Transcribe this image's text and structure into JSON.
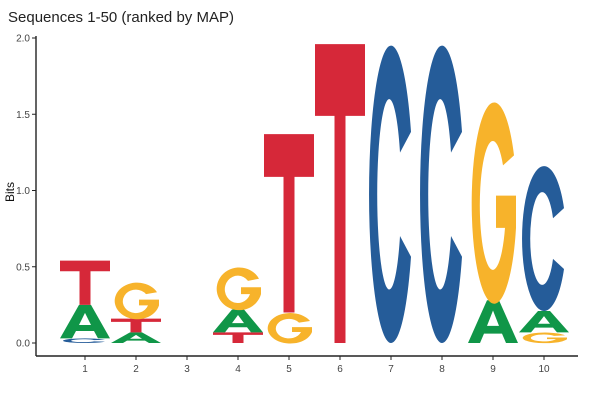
{
  "chart_data": {
    "type": "sequence-logo",
    "title": "Sequences 1-50 (ranked by MAP)",
    "ylabel": "Bits",
    "xlabel": "",
    "ylim": [
      0,
      2.0
    ],
    "yticks": [
      "0.0",
      "0.5",
      "1.0",
      "1.5",
      "2.0"
    ],
    "positions": [
      "1",
      "2",
      "3",
      "4",
      "5",
      "6",
      "7",
      "8",
      "9",
      "10"
    ],
    "colors": {
      "A": "#109648",
      "C": "#255c99",
      "G": "#f7b32b",
      "T": "#d62839"
    },
    "stacks": [
      [
        {
          "letter": "C",
          "bits": 0.03
        },
        {
          "letter": "A",
          "bits": 0.22
        },
        {
          "letter": "T",
          "bits": 0.29
        }
      ],
      [
        {
          "letter": "A",
          "bits": 0.07
        },
        {
          "letter": "T",
          "bits": 0.09
        },
        {
          "letter": "G",
          "bits": 0.24
        }
      ],
      [],
      [
        {
          "letter": "T",
          "bits": 0.07
        },
        {
          "letter": "A",
          "bits": 0.15
        },
        {
          "letter": "G",
          "bits": 0.28
        }
      ],
      [
        {
          "letter": "G",
          "bits": 0.2
        },
        {
          "letter": "T",
          "bits": 1.17
        }
      ],
      [
        {
          "letter": "T",
          "bits": 1.96
        }
      ],
      [
        {
          "letter": "C",
          "bits": 1.95
        }
      ],
      [
        {
          "letter": "C",
          "bits": 1.95
        }
      ],
      [
        {
          "letter": "A",
          "bits": 0.28
        },
        {
          "letter": "G",
          "bits": 1.32
        }
      ],
      [
        {
          "letter": "G",
          "bits": 0.07
        },
        {
          "letter": "A",
          "bits": 0.14
        },
        {
          "letter": "C",
          "bits": 0.95
        }
      ]
    ]
  }
}
